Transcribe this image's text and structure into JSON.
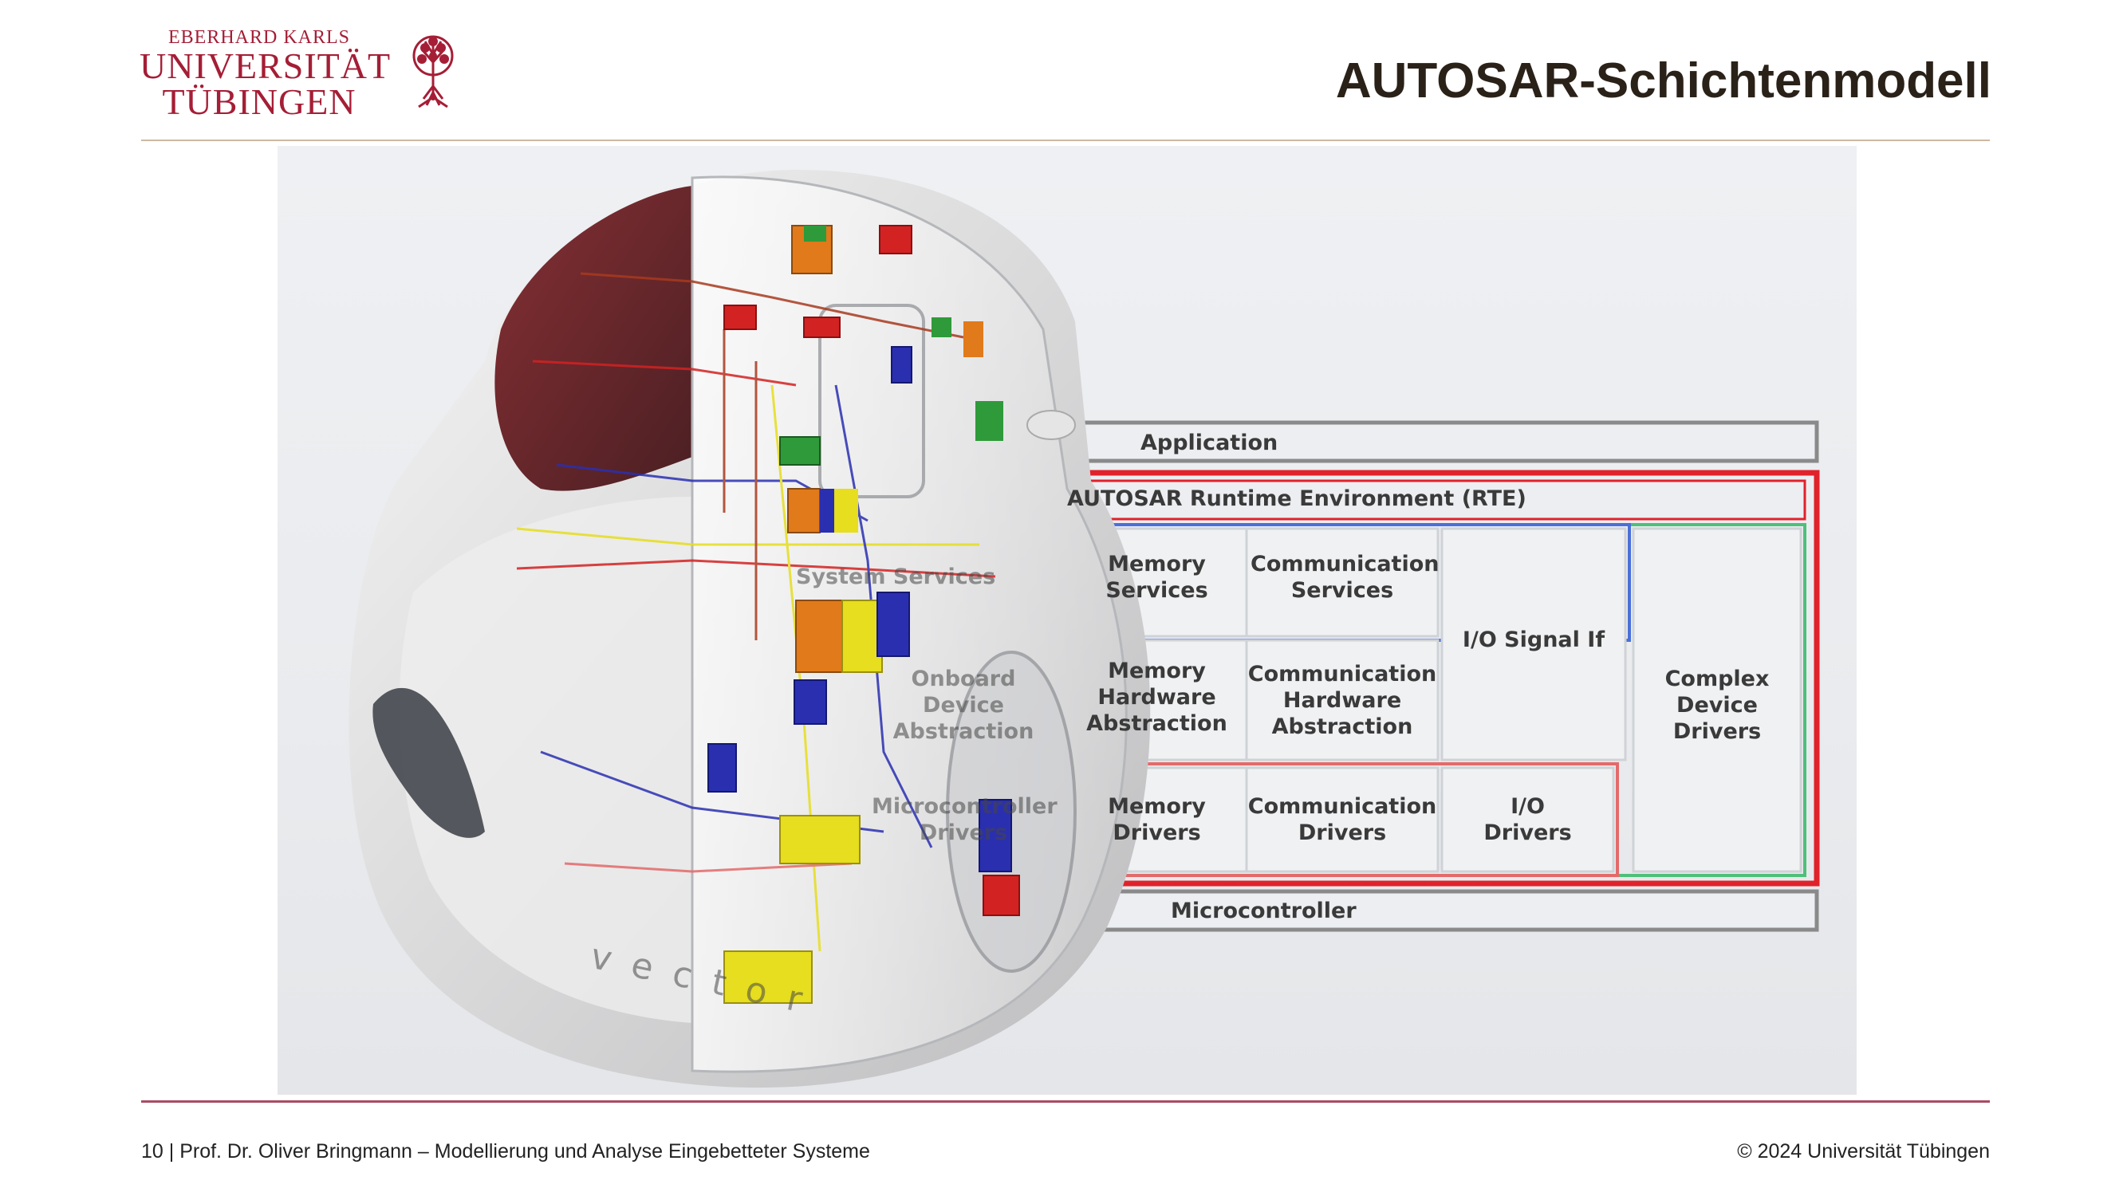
{
  "header": {
    "logo": {
      "line1": "EBERHARD KARLS",
      "line2": "UNIVERSITÄT",
      "line3": "TÜBINGEN"
    },
    "title": "AUTOSAR-Schichtenmodell"
  },
  "diagram": {
    "application": "Application",
    "rte": "AUTOSAR Runtime Environment (RTE)",
    "system_services": "System Services",
    "memory_services": [
      "Memory",
      "Services"
    ],
    "communication_services": [
      "Communication",
      "Services"
    ],
    "io_signal_if": "I/O Signal If",
    "complex_device_drivers": [
      "Complex",
      "Device",
      "Drivers"
    ],
    "onboard_device_abstraction": [
      "Onboard",
      "Device",
      "Abstraction"
    ],
    "memory_hardware_abstraction": [
      "Memory",
      "Hardware",
      "Abstraction"
    ],
    "communication_hardware_abstraction": [
      "Communication",
      "Hardware",
      "Abstraction"
    ],
    "microcontroller_drivers": [
      "Microcontroller",
      "Drivers"
    ],
    "memory_drivers": [
      "Memory",
      "Drivers"
    ],
    "communication_drivers": [
      "Communication",
      "Drivers"
    ],
    "io_drivers": [
      "I/O",
      "Drivers"
    ],
    "microcontroller": "Microcontroller",
    "car_brand": "vector",
    "colors": {
      "rte_frame": "#e0222b",
      "green_frame": "#4fbf7a",
      "blue_frame": "#4a6fd8",
      "red_frame": "#e36a6a",
      "ecu_orange": "#e07a1a",
      "ecu_green": "#2f9a3a",
      "ecu_red": "#d32222",
      "ecu_blue": "#2a2fb0",
      "ecu_yellow": "#e6de1e"
    }
  },
  "footer": {
    "left": "10 | Prof. Dr. Oliver Bringmann – Modellierung und Analyse Eingebetteter Systeme",
    "right": "© 2024 Universität Tübingen"
  }
}
